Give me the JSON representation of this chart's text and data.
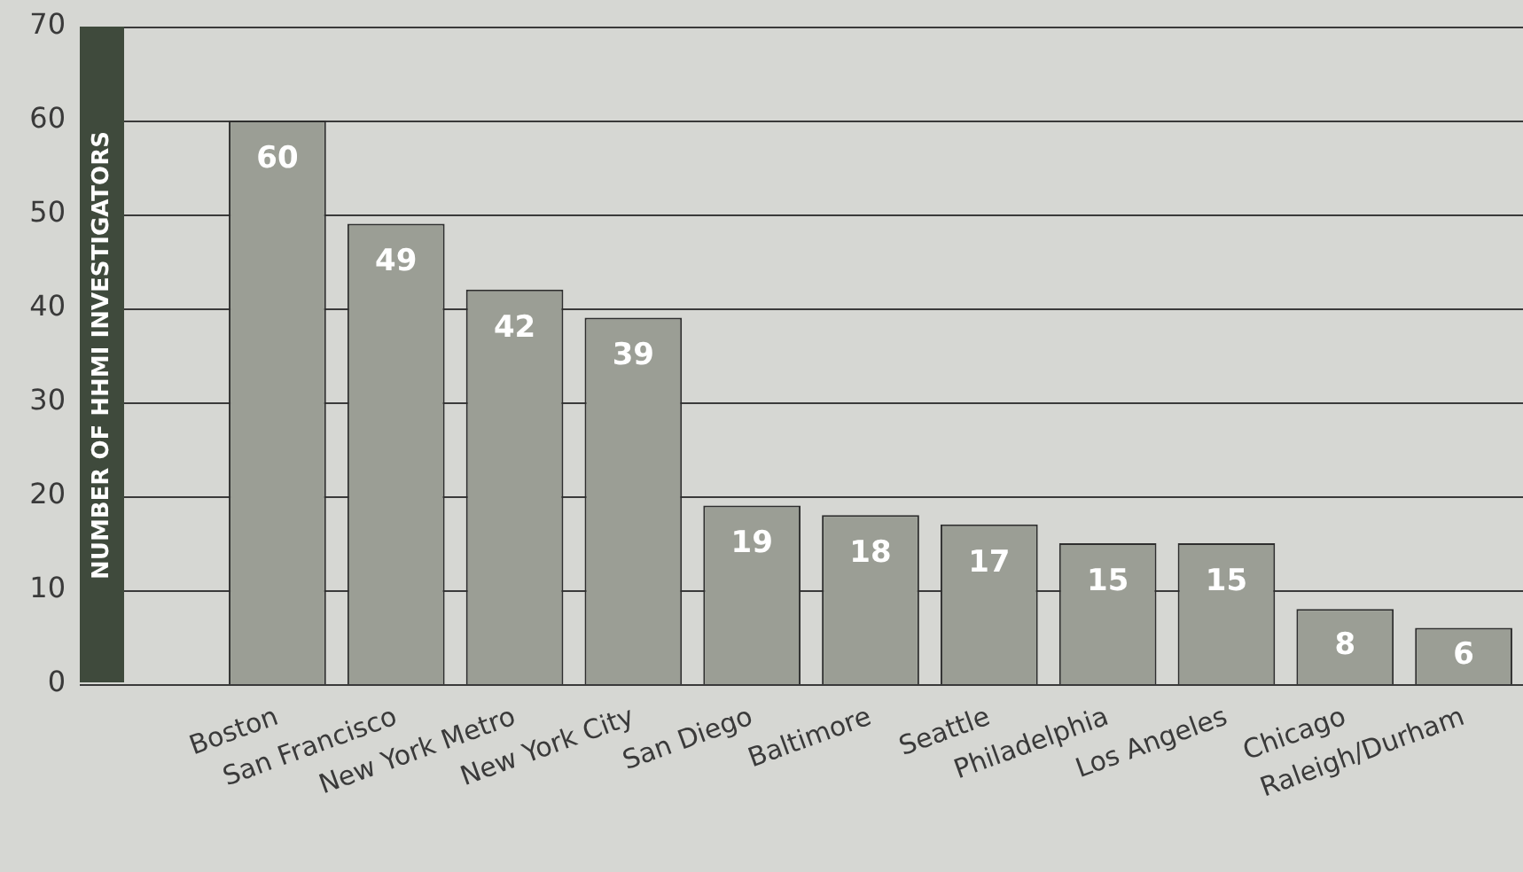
{
  "chart_data": {
    "type": "bar",
    "ylabel": "NUMBER OF HHMI INVESTIGATORS",
    "categories": [
      "Boston",
      "San Francisco",
      "New York Metro",
      "New York City",
      "San Diego",
      "Baltimore",
      "Seattle",
      "Philadelphia",
      "Los Angeles",
      "Chicago",
      "Raleigh/Durham"
    ],
    "values": [
      60,
      49,
      42,
      39,
      19,
      18,
      17,
      15,
      15,
      8,
      6
    ],
    "color": "#9b9e95",
    "ylim": [
      0,
      70
    ],
    "yticks": [
      0,
      10,
      20,
      30,
      40,
      50,
      60,
      70
    ],
    "grid": "y",
    "data_labels": true,
    "legend": false
  }
}
